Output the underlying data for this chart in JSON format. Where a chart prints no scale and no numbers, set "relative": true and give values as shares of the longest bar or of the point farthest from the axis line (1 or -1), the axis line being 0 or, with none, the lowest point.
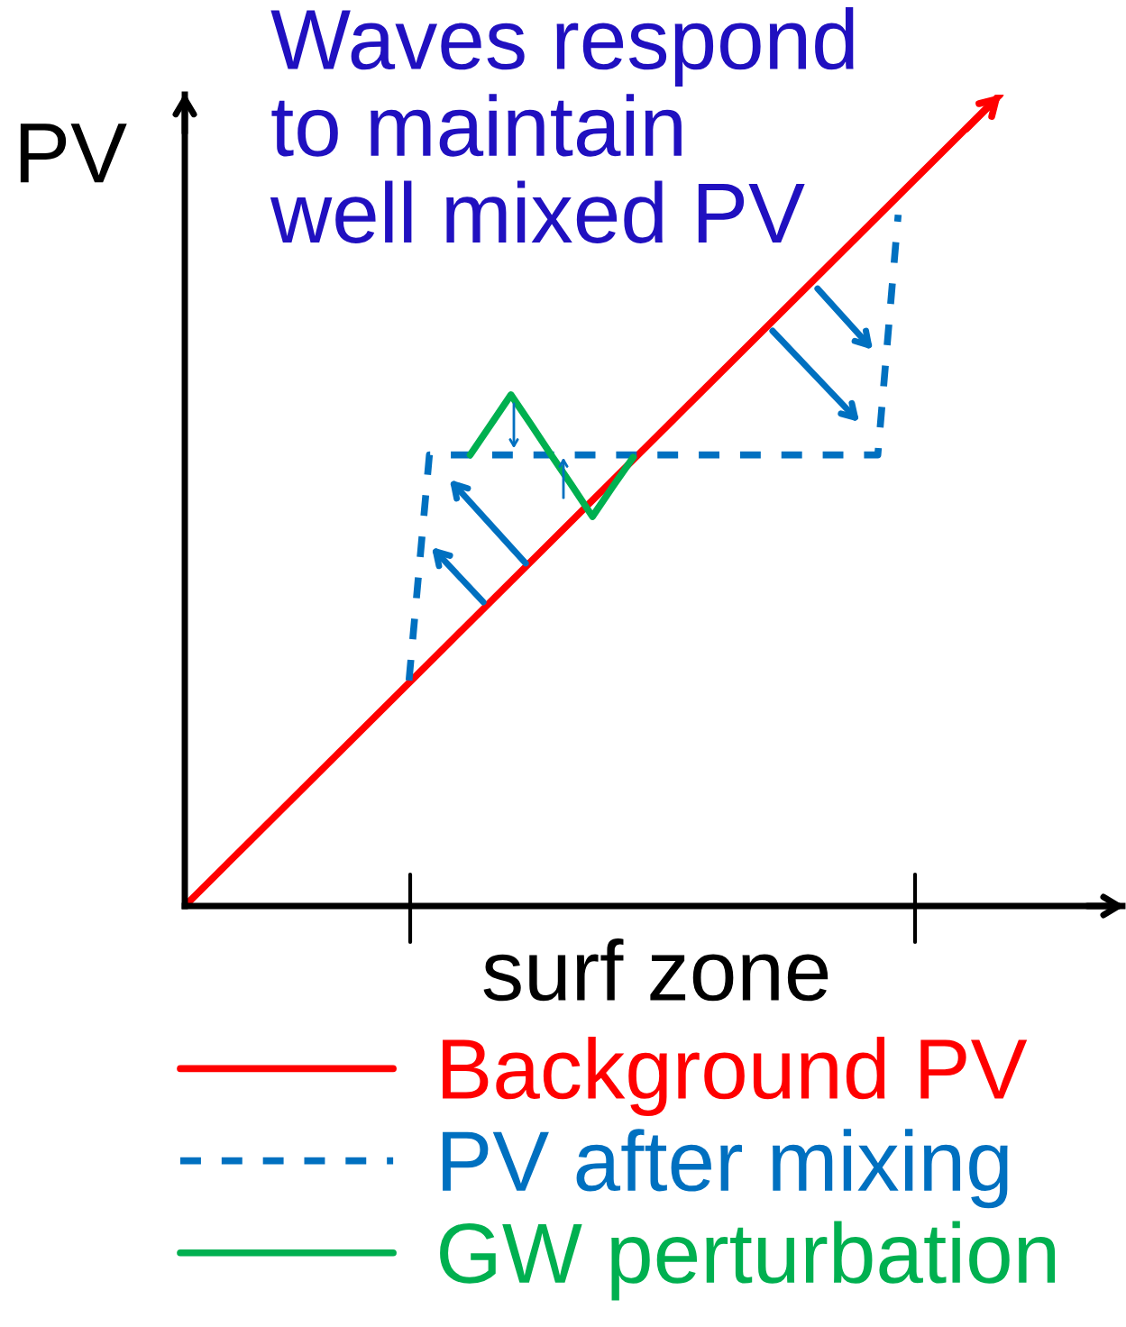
{
  "chart_data": {
    "type": "line",
    "relative": true,
    "xlabel": "surf zone",
    "ylabel": "PV",
    "annotations": [
      "Waves respond\nto maintain\nwell mixed PV"
    ],
    "categories": [
      null,
      null,
      null,
      null,
      null,
      null,
      null,
      null,
      null,
      null,
      null,
      null,
      null,
      null,
      null,
      null,
      null,
      null,
      null,
      null,
      null,
      null,
      null,
      null,
      null,
      null,
      null,
      null,
      null,
      null,
      null,
      null,
      null,
      null,
      null,
      null,
      null,
      null,
      null,
      null,
      null,
      null,
      null,
      null,
      null,
      null,
      null
    ],
    "grid": false,
    "legend": "bottom",
    "series": [
      {
        "name": "Background PV",
        "color": "#ff0000",
        "line_style": "solid",
        "values": [
          0.0,
          0.025,
          0.05,
          0.075,
          0.1,
          0.125,
          0.15,
          0.175,
          0.2,
          0.225,
          0.25,
          0.275,
          0.3,
          0.325,
          0.35,
          0.375,
          0.4,
          0.425,
          0.45,
          0.475,
          0.5,
          0.525,
          0.55,
          0.575,
          0.6,
          0.625,
          0.65,
          0.675,
          0.7,
          0.725,
          0.75,
          0.775,
          0.8,
          0.825,
          0.85,
          0.875,
          0.9,
          0.925,
          0.95,
          0.975,
          1.0,
          null,
          null,
          null,
          null,
          null,
          null
        ]
      },
      {
        "name": "PV after mixing",
        "color": "#0070c0",
        "line_style": "dashed",
        "values": [
          null,
          null,
          null,
          null,
          null,
          null,
          null,
          null,
          null,
          null,
          null,
          0.278,
          0.556,
          0.556,
          0.556,
          0.556,
          0.556,
          0.556,
          0.556,
          0.556,
          0.556,
          0.556,
          0.556,
          0.556,
          0.556,
          0.556,
          0.556,
          0.556,
          0.556,
          0.556,
          0.556,
          0.556,
          0.556,
          0.556,
          0.556,
          0.852,
          null,
          null,
          null,
          null,
          null,
          null,
          null,
          null,
          null,
          null,
          null
        ]
      },
      {
        "name": "GW perturbation",
        "color": "#00b050",
        "line_style": "solid",
        "values": [
          null,
          null,
          null,
          null,
          null,
          null,
          null,
          null,
          null,
          null,
          null,
          null,
          null,
          null,
          0.556,
          0.593,
          0.63,
          0.593,
          0.555,
          0.518,
          0.48,
          0.517,
          0.553,
          null,
          null,
          null,
          null,
          null,
          null,
          null,
          null,
          null,
          null,
          null,
          null,
          null,
          null,
          null,
          null,
          null,
          null,
          null,
          null,
          null,
          null,
          null,
          null
        ]
      }
    ]
  }
}
